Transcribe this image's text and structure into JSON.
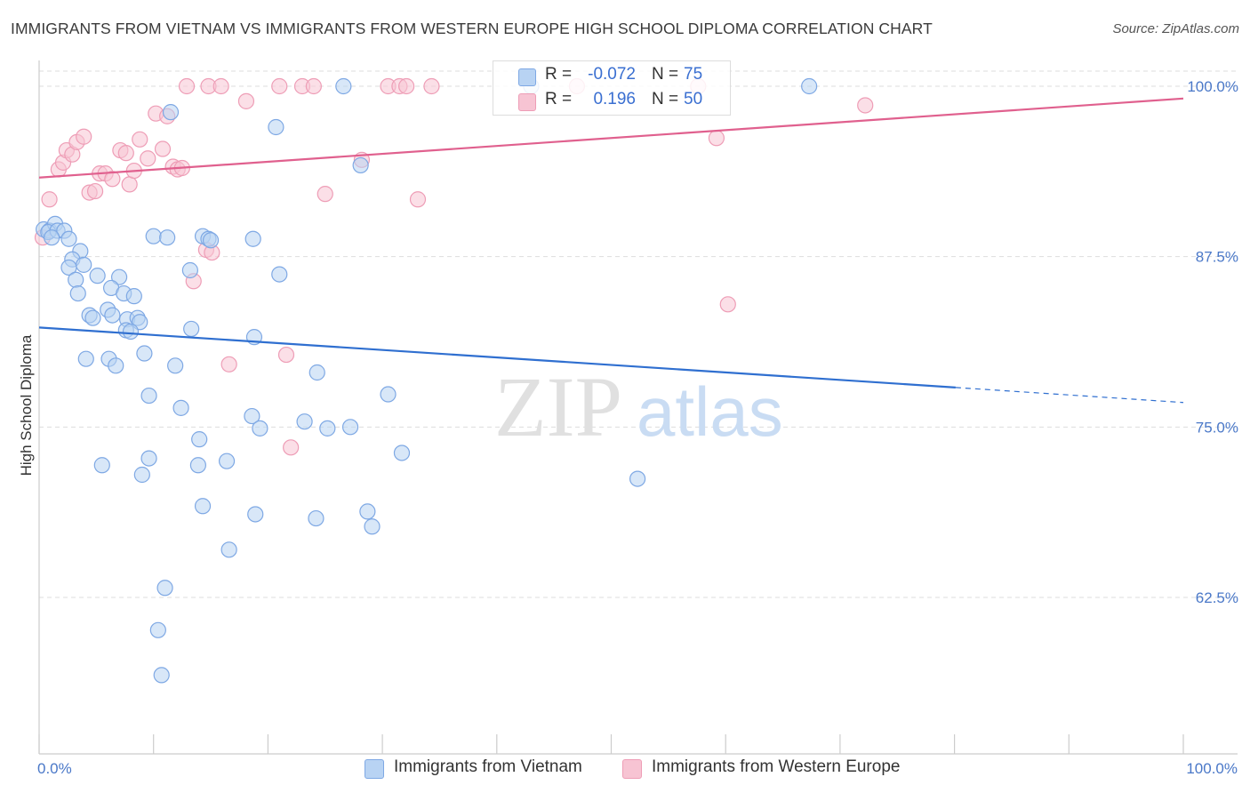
{
  "title": "IMMIGRANTS FROM VIETNAM VS IMMIGRANTS FROM WESTERN EUROPE HIGH SCHOOL DIPLOMA CORRELATION CHART",
  "source": "Source: ZipAtlas.com",
  "watermark": {
    "zip": "ZIP",
    "atlas": "atlas"
  },
  "colors": {
    "blue_fill": "#b8d3f3",
    "blue_stroke": "#7ea8e4",
    "blue_line": "#2f6fd0",
    "pink_fill": "#f7c4d3",
    "pink_stroke": "#ee9db6",
    "pink_line": "#e0608e",
    "grid": "#dddddd",
    "axis_text": "#4a78c8"
  },
  "legend": {
    "rows": [
      {
        "r_label": "R =",
        "r_value": "-0.072",
        "n_label": "N =",
        "n_value": "75"
      },
      {
        "r_label": "R =",
        "r_value": "0.196",
        "n_label": "N =",
        "n_value": "50"
      }
    ]
  },
  "bottom_legend": [
    "Immigrants from Vietnam",
    "Immigrants from Western Europe"
  ],
  "chart_data": {
    "type": "scatter",
    "title": "IMMIGRANTS FROM VIETNAM VS IMMIGRANTS FROM WESTERN EUROPE HIGH SCHOOL DIPLOMA CORRELATION CHART",
    "xlabel": "",
    "ylabel": "High School Diploma",
    "xlim": [
      0,
      100
    ],
    "ylim": [
      52.5,
      101.5
    ],
    "x_tick_labels": [
      "0.0%",
      "100.0%"
    ],
    "y_ticks": [
      62.5,
      75.0,
      87.5,
      100.0
    ],
    "y_tick_labels": [
      "62.5%",
      "75.0%",
      "87.5%",
      "100.0%"
    ],
    "grid": true,
    "legend_position": "top-center",
    "series": [
      {
        "name": "Immigrants from Vietnam",
        "color": "#b8d3f3",
        "trend": {
          "x": [
            0,
            80.1
          ],
          "y": [
            82.3,
            77.9
          ],
          "dashed_to": [
            100,
            76.8
          ]
        },
        "points": [
          [
            0.4,
            89.5
          ],
          [
            0.9,
            89.4
          ],
          [
            1.4,
            89.9
          ],
          [
            0.8,
            89.3
          ],
          [
            1.6,
            89.4
          ],
          [
            2.2,
            89.4
          ],
          [
            2.6,
            88.8
          ],
          [
            1.1,
            88.9
          ],
          [
            3.6,
            87.9
          ],
          [
            2.9,
            87.3
          ],
          [
            3.9,
            86.9
          ],
          [
            2.6,
            86.7
          ],
          [
            3.2,
            85.8
          ],
          [
            5.1,
            86.1
          ],
          [
            7.0,
            86.0
          ],
          [
            3.4,
            84.8
          ],
          [
            6.3,
            85.2
          ],
          [
            7.4,
            84.8
          ],
          [
            8.3,
            84.6
          ],
          [
            6.0,
            83.6
          ],
          [
            4.4,
            83.2
          ],
          [
            4.7,
            83.0
          ],
          [
            6.4,
            83.2
          ],
          [
            7.7,
            82.9
          ],
          [
            8.6,
            83.0
          ],
          [
            8.8,
            82.7
          ],
          [
            7.6,
            82.1
          ],
          [
            8.0,
            82.0
          ],
          [
            13.3,
            82.2
          ],
          [
            18.8,
            81.6
          ],
          [
            9.2,
            80.4
          ],
          [
            4.1,
            80.0
          ],
          [
            6.1,
            80.0
          ],
          [
            6.7,
            79.5
          ],
          [
            11.9,
            79.5
          ],
          [
            24.3,
            79.0
          ],
          [
            9.6,
            77.3
          ],
          [
            12.4,
            76.4
          ],
          [
            30.5,
            77.4
          ],
          [
            18.6,
            75.8
          ],
          [
            19.3,
            74.9
          ],
          [
            23.2,
            75.4
          ],
          [
            25.2,
            74.9
          ],
          [
            27.2,
            75.0
          ],
          [
            14.0,
            74.1
          ],
          [
            31.7,
            73.1
          ],
          [
            9.6,
            72.7
          ],
          [
            13.9,
            72.2
          ],
          [
            16.4,
            72.5
          ],
          [
            5.5,
            72.2
          ],
          [
            9.0,
            71.5
          ],
          [
            52.3,
            71.2
          ],
          [
            14.3,
            69.2
          ],
          [
            18.9,
            68.6
          ],
          [
            24.2,
            68.3
          ],
          [
            28.7,
            68.8
          ],
          [
            29.1,
            67.7
          ],
          [
            16.6,
            66.0
          ],
          [
            11.0,
            63.2
          ],
          [
            10.4,
            60.1
          ],
          [
            10.7,
            56.8
          ],
          [
            14.3,
            89.0
          ],
          [
            14.8,
            88.8
          ],
          [
            18.7,
            88.8
          ],
          [
            15.0,
            88.7
          ],
          [
            21.0,
            86.2
          ],
          [
            13.2,
            86.5
          ],
          [
            10.0,
            89.0
          ],
          [
            11.2,
            88.9
          ],
          [
            28.1,
            94.2
          ],
          [
            20.7,
            97.0
          ],
          [
            11.5,
            98.1
          ],
          [
            26.6,
            100.0
          ],
          [
            43.0,
            100.0
          ],
          [
            67.3,
            100.0
          ]
        ]
      },
      {
        "name": "Immigrants from Western Europe",
        "color": "#f7c4d3",
        "trend": {
          "x": [
            0,
            100
          ],
          "y": [
            93.3,
            99.1
          ]
        },
        "points": [
          [
            0.3,
            88.9
          ],
          [
            0.9,
            91.7
          ],
          [
            1.7,
            93.9
          ],
          [
            2.1,
            94.4
          ],
          [
            2.4,
            95.3
          ],
          [
            2.9,
            95.0
          ],
          [
            3.3,
            95.9
          ],
          [
            3.9,
            96.3
          ],
          [
            4.4,
            92.2
          ],
          [
            4.9,
            92.3
          ],
          [
            5.3,
            93.6
          ],
          [
            5.8,
            93.6
          ],
          [
            6.4,
            93.2
          ],
          [
            7.1,
            95.3
          ],
          [
            7.6,
            95.1
          ],
          [
            7.9,
            92.8
          ],
          [
            8.3,
            93.8
          ],
          [
            8.8,
            96.1
          ],
          [
            9.5,
            94.7
          ],
          [
            10.2,
            98.0
          ],
          [
            10.8,
            95.4
          ],
          [
            11.2,
            97.8
          ],
          [
            11.7,
            94.1
          ],
          [
            12.1,
            93.9
          ],
          [
            12.5,
            94.0
          ],
          [
            13.5,
            85.7
          ],
          [
            14.6,
            88.0
          ],
          [
            15.1,
            87.8
          ],
          [
            16.6,
            79.6
          ],
          [
            18.1,
            98.9
          ],
          [
            21.6,
            80.3
          ],
          [
            22.0,
            73.5
          ],
          [
            25.0,
            92.1
          ],
          [
            28.2,
            94.6
          ],
          [
            33.1,
            91.7
          ],
          [
            12.9,
            100.0
          ],
          [
            14.8,
            100.0
          ],
          [
            15.9,
            100.0
          ],
          [
            21.0,
            100.0
          ],
          [
            23.0,
            100.0
          ],
          [
            24.0,
            100.0
          ],
          [
            30.5,
            100.0
          ],
          [
            31.5,
            100.0
          ],
          [
            32.1,
            100.0
          ],
          [
            34.3,
            100.0
          ],
          [
            47.0,
            100.0
          ],
          [
            57.6,
            100.0
          ],
          [
            59.2,
            96.2
          ],
          [
            60.2,
            84.0
          ],
          [
            72.2,
            98.6
          ]
        ]
      }
    ]
  }
}
